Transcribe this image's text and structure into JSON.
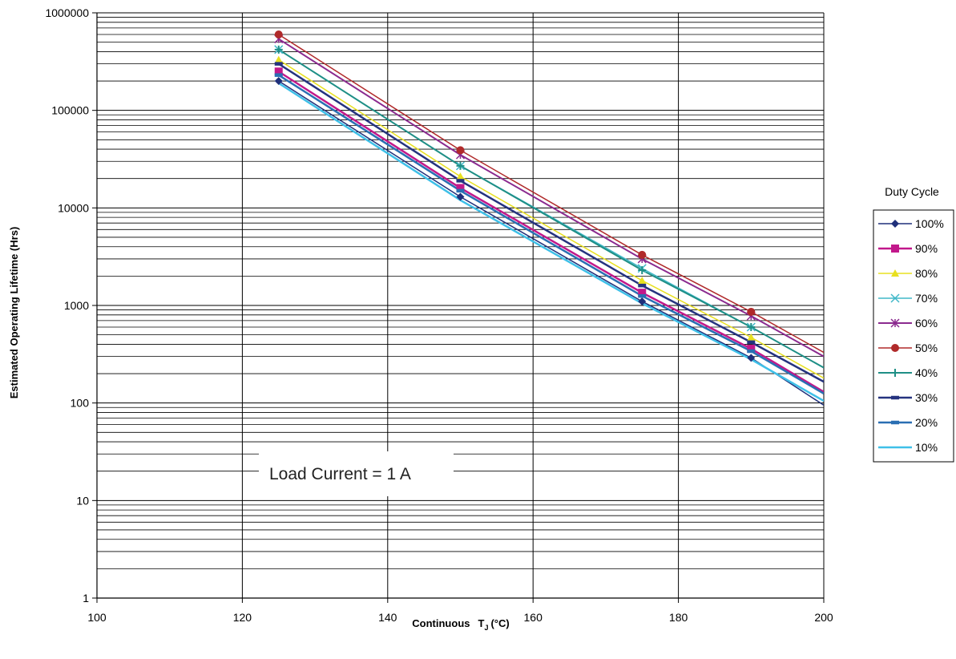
{
  "chart_data": {
    "type": "line",
    "title": "",
    "xlabel": "Continuous",
    "xlabel_symbol": "T",
    "xlabel_subscript": "J",
    "xlabel_unit": "(°C)",
    "ylabel": "Estimated Operating Lifetime (Hrs)",
    "xlim": [
      100,
      200
    ],
    "ylim": [
      1,
      1000000
    ],
    "y_scale": "log",
    "grid": true,
    "x_ticks": [
      100,
      120,
      140,
      160,
      180,
      200
    ],
    "x_tick_labels": [
      "100",
      "120",
      "140",
      "160",
      "180",
      "200"
    ],
    "y_ticks": [
      1,
      10,
      100,
      1000,
      10000,
      100000,
      1000000
    ],
    "y_tick_labels": [
      "1",
      "10",
      "100",
      "1000",
      "10000",
      "100000",
      "1000000"
    ],
    "x": [
      125,
      150,
      175,
      190
    ],
    "legend_title": "Duty Cycle",
    "legend_position": "right",
    "series": [
      {
        "name": "100%",
        "values": [
          200000,
          13000,
          1100,
          290
        ],
        "extended": [
          200,
          95
        ],
        "color": "#1f2f7a",
        "marker": "diamond",
        "width": 1.5
      },
      {
        "name": "90%",
        "values": [
          250000,
          16000,
          1350,
          360
        ],
        "extended": [
          200,
          130
        ],
        "color": "#c2188b",
        "marker": "square",
        "width": 2.5
      },
      {
        "name": "80%",
        "values": [
          330000,
          21000,
          1800,
          470
        ],
        "extended": [
          200,
          180
        ],
        "color": "#e8e020",
        "marker": "triangle",
        "width": 1.5
      },
      {
        "name": "70%",
        "values": [
          420000,
          27000,
          2400,
          600
        ],
        "extended": [
          200,
          230
        ],
        "color": "#40b8c8",
        "marker": "x",
        "width": 1.5
      },
      {
        "name": "60%",
        "values": [
          540000,
          35000,
          3000,
          780
        ],
        "extended": [
          200,
          300
        ],
        "color": "#8b2a8f",
        "marker": "star",
        "width": 2
      },
      {
        "name": "50%",
        "values": [
          600000,
          39000,
          3300,
          860
        ],
        "extended": [
          200,
          330
        ],
        "color": "#b02a2a",
        "marker": "circle",
        "width": 1.5
      },
      {
        "name": "40%",
        "values": [
          420000,
          27000,
          2300,
          600
        ],
        "extended": [
          200,
          230
        ],
        "color": "#1f8f86",
        "marker": "plus",
        "width": 2
      },
      {
        "name": "30%",
        "values": [
          300000,
          19000,
          1600,
          420
        ],
        "extended": [
          200,
          165
        ],
        "color": "#25337f",
        "marker": "dash",
        "width": 2.5
      },
      {
        "name": "20%",
        "values": [
          230000,
          15000,
          1250,
          340
        ],
        "extended": [
          200,
          125
        ],
        "color": "#2a6fb3",
        "marker": "dash",
        "width": 2.5
      },
      {
        "name": "10%",
        "values": [
          190000,
          12000,
          1050,
          280
        ],
        "extended": [
          200,
          105
        ],
        "color": "#3fc0e8",
        "marker": "none",
        "width": 2.5
      }
    ],
    "annotation": "Load Current = 1 A"
  }
}
